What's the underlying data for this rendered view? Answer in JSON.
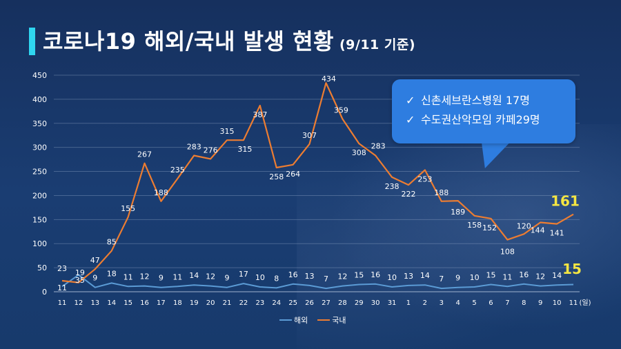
{
  "title": {
    "main": "코로나19 해외/국내 발생 현황",
    "sub": "(9/11 기준)",
    "accent_color": "#2fd6f0"
  },
  "callout": {
    "items": [
      {
        "icon": "check-icon",
        "text": "신촌세브란스병원 17명"
      },
      {
        "icon": "check-icon",
        "text": "수도권산악모임 카페29명"
      }
    ],
    "background_color": "#2e7de0"
  },
  "chart_data": {
    "type": "line",
    "categories": [
      "11",
      "12",
      "13",
      "14",
      "15",
      "16",
      "17",
      "18",
      "19",
      "20",
      "21",
      "22",
      "23",
      "24",
      "25",
      "26",
      "27",
      "28",
      "29",
      "30",
      "31",
      "1",
      "2",
      "3",
      "4",
      "5",
      "6",
      "7",
      "8",
      "9",
      "10",
      "11"
    ],
    "x_unit_label": "(일)",
    "series": [
      {
        "name": "해외",
        "color": "#5b9bd5",
        "values": [
          11,
          35,
          9,
          18,
          11,
          12,
          9,
          11,
          14,
          12,
          9,
          17,
          10,
          8,
          16,
          13,
          7,
          12,
          15,
          16,
          10,
          13,
          14,
          7,
          9,
          10,
          15,
          11,
          16,
          12,
          14,
          15
        ]
      },
      {
        "name": "국내",
        "color": "#ed7d31",
        "values": [
          23,
          19,
          47,
          85,
          155,
          267,
          188,
          235,
          283,
          276,
          315,
          315,
          387,
          258,
          264,
          307,
          434,
          359,
          308,
          283,
          238,
          222,
          253,
          188,
          189,
          158,
          152,
          108,
          120,
          144,
          141,
          161
        ]
      }
    ],
    "ylim": [
      0,
      450
    ],
    "yticks": [
      0,
      50,
      100,
      150,
      200,
      250,
      300,
      350,
      400,
      450
    ],
    "grid": true,
    "legend_position": "bottom",
    "highlight_last": {
      "color": "#f5e642"
    }
  }
}
